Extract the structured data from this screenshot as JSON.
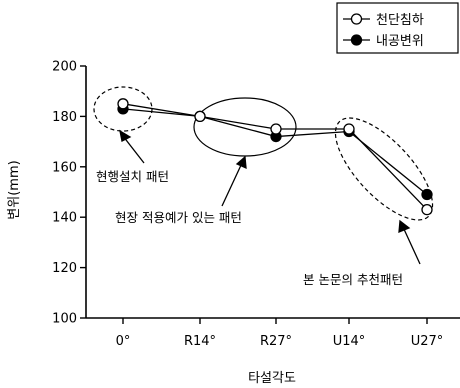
{
  "chart_data": {
    "type": "line",
    "title": "",
    "xlabel": "타설각도",
    "ylabel": "변위(mm)",
    "categories": [
      "0°",
      "R14°",
      "R27°",
      "U14°",
      "U27°"
    ],
    "ylim": [
      100,
      200
    ],
    "yticks": [
      100,
      120,
      140,
      160,
      180,
      200
    ],
    "grid": false,
    "legend_position": "top-right",
    "series": [
      {
        "name": "천단침하",
        "marker": "open-circle",
        "values": [
          185,
          180,
          175,
          175,
          143
        ]
      },
      {
        "name": "내공변위",
        "marker": "filled-circle",
        "values": [
          183,
          180,
          172,
          174,
          149
        ]
      }
    ],
    "annotations": [
      {
        "text": "현행설치 패턴"
      },
      {
        "text": "현장 적용예가 있는 패턴"
      },
      {
        "text": "본 논문의 추천패턴"
      }
    ]
  }
}
